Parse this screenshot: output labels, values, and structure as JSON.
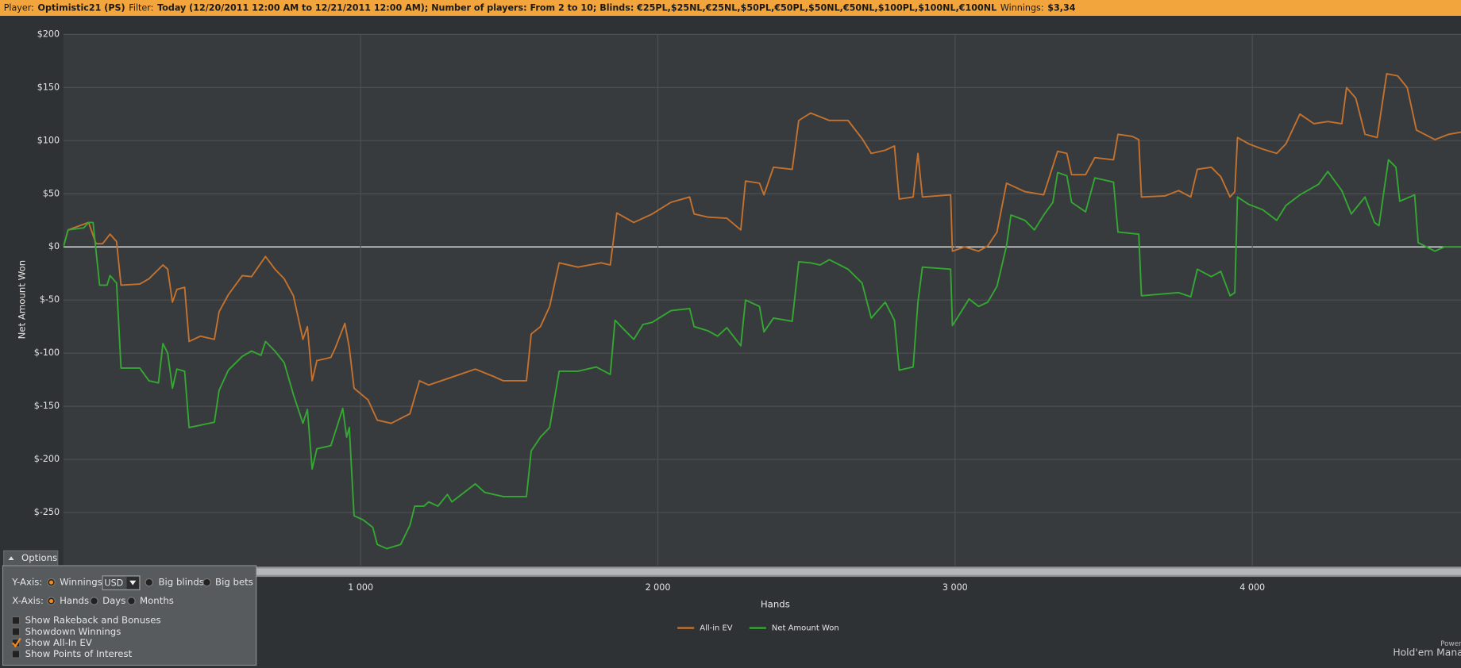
{
  "header": {
    "items": [
      {
        "label": "Player:",
        "value": "Optimistic21 (PS)"
      },
      {
        "label": "Filter:",
        "value": "Today (12/20/2011 12:00 AM to 12/21/2011 12:00 AM); Number of players: From 2 to 10; Blinds: €25PL,$25NL,€25NL,$50PL,€50PL,$50NL,€50NL,$100PL,$100NL,€100NL"
      },
      {
        "label": "Winnings:",
        "value": "$3,34"
      }
    ]
  },
  "chart_data": {
    "type": "line",
    "x_label": "Hands",
    "y_label": "Net Amount Won",
    "xlim": [
      0,
      4702
    ],
    "ylim": [
      -300,
      200
    ],
    "xticks": [
      {
        "value": 1000,
        "label": "1 000"
      },
      {
        "value": 2000,
        "label": "2 000"
      },
      {
        "value": 3000,
        "label": "3 000"
      },
      {
        "value": 4000,
        "label": "4 000"
      }
    ],
    "yticks": [
      {
        "value": 200,
        "label": "$200"
      },
      {
        "value": 150,
        "label": "$150"
      },
      {
        "value": 100,
        "label": "$100"
      },
      {
        "value": 50,
        "label": "$50"
      },
      {
        "value": 0,
        "label": "$0"
      },
      {
        "value": -50,
        "label": "$-50"
      },
      {
        "value": -100,
        "label": "$-100"
      },
      {
        "value": -150,
        "label": "$-150"
      },
      {
        "value": -200,
        "label": "$-200"
      },
      {
        "value": -250,
        "label": "$-250"
      }
    ],
    "grid": true,
    "legend": "bottom",
    "series": [
      {
        "name": "All-in EV",
        "color": "#c4722e",
        "x": [
          0,
          16,
          85,
          110,
          132,
          157,
          179,
          194,
          257,
          288,
          335,
          351,
          367,
          382,
          408,
          423,
          461,
          508,
          524,
          555,
          602,
          633,
          680,
          712,
          743,
          774,
          806,
          821,
          837,
          853,
          900,
          915,
          947,
          962,
          978,
          1025,
          1056,
          1103,
          1166,
          1198,
          1229,
          1292,
          1386,
          1448,
          1480,
          1558,
          1574,
          1605,
          1636,
          1668,
          1731,
          1809,
          1840,
          1862,
          1919,
          1981,
          2044,
          2107,
          2122,
          2169,
          2232,
          2279,
          2295,
          2342,
          2357,
          2389,
          2452,
          2474,
          2514,
          2577,
          2640,
          2687,
          2718,
          2765,
          2796,
          2812,
          2859,
          2875,
          2890,
          2985,
          2991,
          3032,
          3079,
          3110,
          3141,
          3173,
          3235,
          3298,
          3345,
          3376,
          3392,
          3439,
          3470,
          3533,
          3548,
          3596,
          3618,
          3627,
          3706,
          3752,
          3793,
          3815,
          3862,
          3894,
          3925,
          3941,
          3950,
          3988,
          4035,
          4082,
          4113,
          4160,
          4207,
          4254,
          4301,
          4317,
          4348,
          4379,
          4420,
          4452,
          4489,
          4521,
          4552,
          4614,
          4661,
          4702
        ],
        "values": [
          0,
          16,
          23,
          3,
          3,
          12,
          5,
          -36,
          -35,
          -30,
          -17,
          -21,
          -52,
          -40,
          -38,
          -89,
          -84,
          -87,
          -61,
          -45,
          -27,
          -28,
          -9,
          -21,
          -30,
          -46,
          -87,
          -75,
          -126,
          -107,
          -104,
          -95,
          -72,
          -95,
          -133,
          -144,
          -163,
          -166,
          -157,
          -126,
          -130,
          -124,
          -115,
          -122,
          -126,
          -126,
          -82,
          -75,
          -56,
          -15,
          -19,
          -15,
          -17,
          32,
          23,
          31,
          42,
          47,
          31,
          28,
          27,
          16,
          62,
          60,
          49,
          75,
          73,
          119,
          126,
          119,
          119,
          102,
          88,
          91,
          95,
          45,
          47,
          88,
          47,
          49,
          -4,
          0,
          -4,
          1,
          14,
          60,
          52,
          49,
          90,
          88,
          68,
          68,
          84,
          82,
          106,
          104,
          101,
          47,
          48,
          53,
          47,
          73,
          75,
          66,
          47,
          52,
          103,
          97,
          92,
          88,
          97,
          125,
          116,
          118,
          116,
          150,
          140,
          106,
          103,
          163,
          161,
          150,
          110,
          101,
          106,
          108
        ]
      },
      {
        "name": "Net Amount Won",
        "color": "#34a832",
        "x": [
          0,
          16,
          69,
          85,
          100,
          110,
          122,
          147,
          157,
          179,
          194,
          257,
          288,
          320,
          335,
          351,
          367,
          382,
          408,
          423,
          508,
          524,
          555,
          602,
          633,
          665,
          680,
          712,
          743,
          774,
          806,
          821,
          837,
          853,
          900,
          915,
          940,
          953,
          962,
          978,
          1009,
          1041,
          1056,
          1088,
          1135,
          1166,
          1182,
          1213,
          1229,
          1260,
          1292,
          1307,
          1386,
          1417,
          1480,
          1558,
          1574,
          1605,
          1636,
          1668,
          1731,
          1793,
          1840,
          1856,
          1887,
          1919,
          1950,
          1981,
          2044,
          2107,
          2122,
          2169,
          2201,
          2232,
          2279,
          2295,
          2342,
          2357,
          2389,
          2452,
          2474,
          2514,
          2546,
          2577,
          2640,
          2687,
          2718,
          2765,
          2796,
          2812,
          2859,
          2875,
          2890,
          2985,
          2991,
          3016,
          3047,
          3079,
          3110,
          3141,
          3173,
          3188,
          3235,
          3267,
          3298,
          3329,
          3345,
          3376,
          3392,
          3439,
          3470,
          3533,
          3548,
          3618,
          3627,
          3752,
          3793,
          3815,
          3862,
          3894,
          3925,
          3941,
          3950,
          3988,
          4035,
          4082,
          4113,
          4160,
          4223,
          4254,
          4301,
          4333,
          4379,
          4411,
          4426,
          4458,
          4483,
          4496,
          4546,
          4558,
          4614,
          4646,
          4702
        ],
        "values": [
          0,
          16,
          18,
          23,
          23,
          -4,
          -36,
          -36,
          -27,
          -34,
          -114,
          -114,
          -126,
          -128,
          -91,
          -100,
          -133,
          -115,
          -117,
          -170,
          -165,
          -135,
          -116,
          -103,
          -98,
          -102,
          -89,
          -98,
          -109,
          -139,
          -166,
          -153,
          -209,
          -190,
          -187,
          -174,
          -152,
          -179,
          -170,
          -253,
          -257,
          -264,
          -280,
          -284,
          -280,
          -262,
          -244,
          -244,
          -240,
          -244,
          -233,
          -240,
          -223,
          -231,
          -235,
          -235,
          -192,
          -179,
          -170,
          -117,
          -117,
          -113,
          -120,
          -69,
          -78,
          -87,
          -73,
          -71,
          -60,
          -58,
          -75,
          -79,
          -84,
          -76,
          -93,
          -50,
          -56,
          -80,
          -67,
          -70,
          -14,
          -15,
          -17,
          -12,
          -21,
          -34,
          -67,
          -52,
          -69,
          -116,
          -113,
          -52,
          -19,
          -21,
          -74,
          -63,
          -49,
          -56,
          -52,
          -37,
          1,
          30,
          25,
          16,
          30,
          42,
          70,
          67,
          42,
          33,
          65,
          61,
          14,
          12,
          -46,
          -43,
          -47,
          -21,
          -28,
          -23,
          -46,
          -43,
          47,
          40,
          35,
          25,
          39,
          49,
          59,
          71,
          53,
          31,
          47,
          23,
          20,
          82,
          75,
          43,
          49,
          4,
          -4,
          0,
          0
        ]
      }
    ]
  },
  "options": {
    "tab": "Options",
    "y_axis": {
      "label": "Y-Axis:",
      "choices": [
        "Winnings",
        "Big blinds",
        "Big bets"
      ],
      "selected": 0,
      "currency": "USD"
    },
    "x_axis": {
      "label": "X-Axis:",
      "choices": [
        "Hands",
        "Days",
        "Months"
      ],
      "selected": 0
    },
    "checkboxes": [
      {
        "label": "Show Rakeback and Bonuses",
        "checked": false
      },
      {
        "label": "Showdown Winnings",
        "checked": false
      },
      {
        "label": "Show All-In EV",
        "checked": true
      },
      {
        "label": "Show Points of Interest",
        "checked": false
      }
    ]
  },
  "footer": {
    "powered": "Powered by",
    "brand": "Hold'em Manager"
  }
}
